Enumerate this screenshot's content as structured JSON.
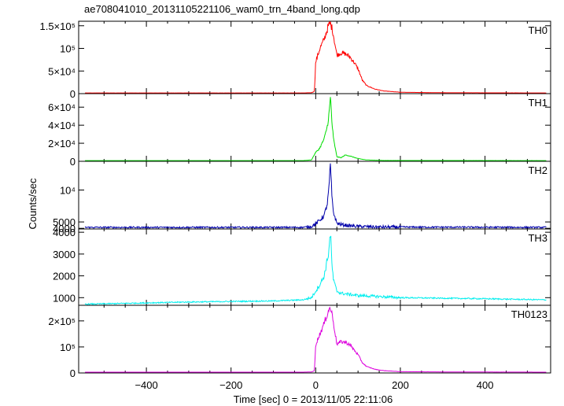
{
  "chart_data": {
    "type": "line",
    "title": "ae708041010_20131105221106_wam0_trn_4band_long.qdp",
    "xlabel": "Time [sec] 0 = 2013/11/05 22:11:06",
    "ylabel": "Counts/sec",
    "xlim": [
      -560,
      555
    ],
    "x_ticks": [
      -400,
      -200,
      0,
      200,
      400
    ],
    "x_tick_labels": [
      "−400",
      "−200",
      "0",
      "200",
      "400"
    ],
    "panels": [
      {
        "name": "TH0",
        "color": "#ff0000",
        "ylim": [
          0,
          160000
        ],
        "y_ticks": [
          0,
          50000,
          100000,
          150000
        ],
        "y_tick_labels": [
          "0",
          "5×10⁴",
          "10⁵",
          "1.5×10⁵"
        ],
        "baseline": 1500,
        "x": [
          -545,
          -100,
          -30,
          -10,
          -3,
          0,
          5,
          10,
          20,
          30,
          35,
          40,
          50,
          60,
          70,
          80,
          90,
          100,
          110,
          120,
          140,
          160,
          200,
          300,
          545
        ],
        "y": [
          1500,
          1500,
          1500,
          2000,
          5000,
          70000,
          85000,
          100000,
          120000,
          150000,
          155000,
          140000,
          85000,
          90000,
          88000,
          82000,
          70000,
          55000,
          30000,
          18000,
          10000,
          6000,
          3000,
          2000,
          1500
        ]
      },
      {
        "name": "TH1",
        "color": "#00dd00",
        "ylim": [
          0,
          75000
        ],
        "y_ticks": [
          0,
          20000,
          40000,
          60000
        ],
        "y_tick_labels": [
          "0",
          "2×10⁴",
          "4×10⁴",
          "6×10⁴"
        ],
        "baseline": 800,
        "x": [
          -545,
          -100,
          -30,
          -10,
          0,
          5,
          10,
          20,
          28,
          32,
          35,
          38,
          42,
          50,
          60,
          70,
          80,
          100,
          120,
          160,
          545
        ],
        "y": [
          800,
          800,
          800,
          1500,
          10000,
          12000,
          15000,
          25000,
          40000,
          55000,
          72000,
          45000,
          25000,
          5000,
          4000,
          7000,
          6000,
          3000,
          1500,
          900,
          800
        ]
      },
      {
        "name": "TH2",
        "color": "#0000aa",
        "ylim": [
          3900,
          14500
        ],
        "y_ticks": [
          4000,
          5000,
          10000
        ],
        "y_tick_labels": [
          "4000",
          "5000",
          "10⁴"
        ],
        "baseline": 4150,
        "x": [
          -545,
          -100,
          -30,
          -10,
          0,
          10,
          20,
          28,
          32,
          35,
          38,
          42,
          50,
          60,
          80,
          100,
          150,
          545
        ],
        "y": [
          4150,
          4150,
          4150,
          4300,
          4700,
          5300,
          6000,
          8000,
          11000,
          14200,
          9000,
          6500,
          4800,
          4600,
          4400,
          4300,
          4200,
          4150
        ]
      },
      {
        "name": "TH3",
        "color": "#00eeee",
        "ylim": [
          650,
          4150
        ],
        "y_ticks": [
          1000,
          2000,
          3000,
          4000
        ],
        "y_tick_labels": [
          "1000",
          "2000",
          "3000",
          "4000"
        ],
        "baseline": 900,
        "x": [
          -545,
          -300,
          -100,
          -30,
          -10,
          0,
          10,
          20,
          30,
          35,
          38,
          42,
          50,
          60,
          80,
          100,
          200,
          400,
          545
        ],
        "y": [
          700,
          800,
          850,
          900,
          1000,
          1300,
          1600,
          2000,
          3000,
          4000,
          2600,
          1800,
          1300,
          1200,
          1150,
          1100,
          1000,
          950,
          900
        ]
      },
      {
        "name": "TH0123",
        "color": "#dd00dd",
        "ylim": [
          0,
          260000
        ],
        "y_ticks": [
          0,
          100000,
          200000
        ],
        "y_tick_labels": [
          "0",
          "10⁵",
          "2×10⁵"
        ],
        "baseline": 3000,
        "x": [
          -545,
          -100,
          -30,
          -10,
          -3,
          0,
          5,
          10,
          20,
          30,
          35,
          40,
          50,
          60,
          70,
          80,
          90,
          100,
          110,
          120,
          140,
          160,
          200,
          300,
          545
        ],
        "y": [
          3000,
          3000,
          3000,
          4000,
          8000,
          110000,
          130000,
          150000,
          190000,
          240000,
          250000,
          215000,
          110000,
          120000,
          118000,
          110000,
          90000,
          70000,
          40000,
          25000,
          14000,
          9000,
          5000,
          4000,
          3000
        ]
      }
    ]
  }
}
